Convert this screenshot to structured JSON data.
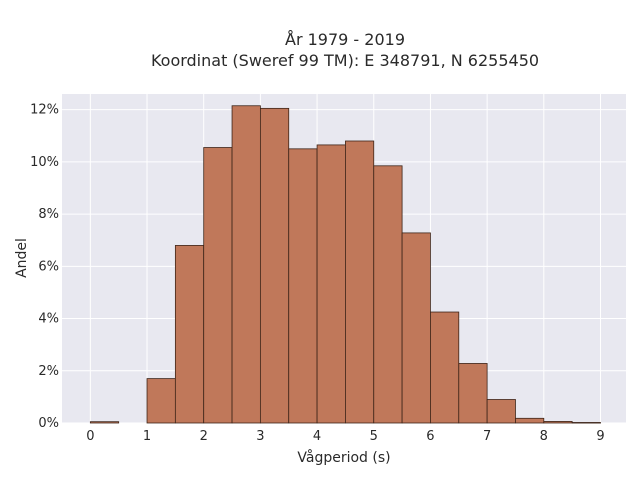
{
  "chart_data": {
    "type": "bar",
    "title_lines": [
      "År 1979 - 2019",
      "Koordinat (Sweref 99 TM): E 348791, N 6255450"
    ],
    "xlabel": "Vågperiod (s)",
    "ylabel": "Andel",
    "xlim": [
      -0.5,
      9.45
    ],
    "ylim": [
      0,
      12.6
    ],
    "x_ticks": [
      0,
      1,
      2,
      3,
      4,
      5,
      6,
      7,
      8,
      9
    ],
    "x_tick_labels": [
      "0",
      "1",
      "2",
      "3",
      "4",
      "5",
      "6",
      "7",
      "8",
      "9"
    ],
    "y_ticks": [
      0,
      2,
      4,
      6,
      8,
      10,
      12
    ],
    "y_tick_labels": [
      "0%",
      "2%",
      "4%",
      "6%",
      "8%",
      "10%",
      "12%"
    ],
    "bin_width": 0.5,
    "bins": [
      {
        "start": 0.0,
        "value": 0.05
      },
      {
        "start": 0.5,
        "value": 0.0
      },
      {
        "start": 1.0,
        "value": 1.7
      },
      {
        "start": 1.5,
        "value": 6.8
      },
      {
        "start": 2.0,
        "value": 10.55
      },
      {
        "start": 2.5,
        "value": 12.15
      },
      {
        "start": 3.0,
        "value": 12.05
      },
      {
        "start": 3.5,
        "value": 10.5
      },
      {
        "start": 4.0,
        "value": 10.65
      },
      {
        "start": 4.5,
        "value": 10.8
      },
      {
        "start": 5.0,
        "value": 9.85
      },
      {
        "start": 5.5,
        "value": 7.28
      },
      {
        "start": 6.0,
        "value": 4.25
      },
      {
        "start": 6.5,
        "value": 2.28
      },
      {
        "start": 7.0,
        "value": 0.9
      },
      {
        "start": 7.5,
        "value": 0.18
      },
      {
        "start": 8.0,
        "value": 0.06
      },
      {
        "start": 8.5,
        "value": 0.02
      }
    ],
    "grid": true,
    "colors": {
      "bar_fill": "#c0785a",
      "bar_edge": "#3d2418",
      "plot_bg": "#e8e8f0",
      "grid": "#ffffff"
    }
  }
}
